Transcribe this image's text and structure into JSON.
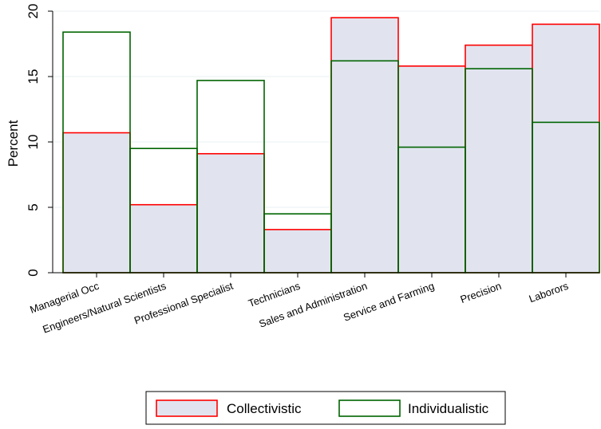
{
  "chart_data": {
    "type": "bar",
    "ylabel": "Percent",
    "ylim": [
      0,
      20
    ],
    "yticks": [
      0,
      5,
      10,
      15,
      20
    ],
    "categories": [
      "Managerial Occ",
      "Engineers/Natural Scientists",
      "Professional Specialist",
      "Technicians",
      "Sales and Administration",
      "Service and Farming",
      "Precision",
      "Laborors"
    ],
    "series": [
      {
        "name": "Collectivistic",
        "values": [
          10.7,
          5.2,
          9.1,
          3.3,
          19.5,
          15.8,
          17.4,
          19.0
        ],
        "fill": "#e1e4ef",
        "stroke": "#ff0000"
      },
      {
        "name": "Individualistic",
        "values": [
          18.4,
          9.5,
          14.7,
          4.5,
          16.2,
          9.6,
          15.6,
          11.5
        ],
        "fill": "none",
        "stroke": "#006400"
      }
    ],
    "grid": true,
    "legend_position": "bottom"
  }
}
